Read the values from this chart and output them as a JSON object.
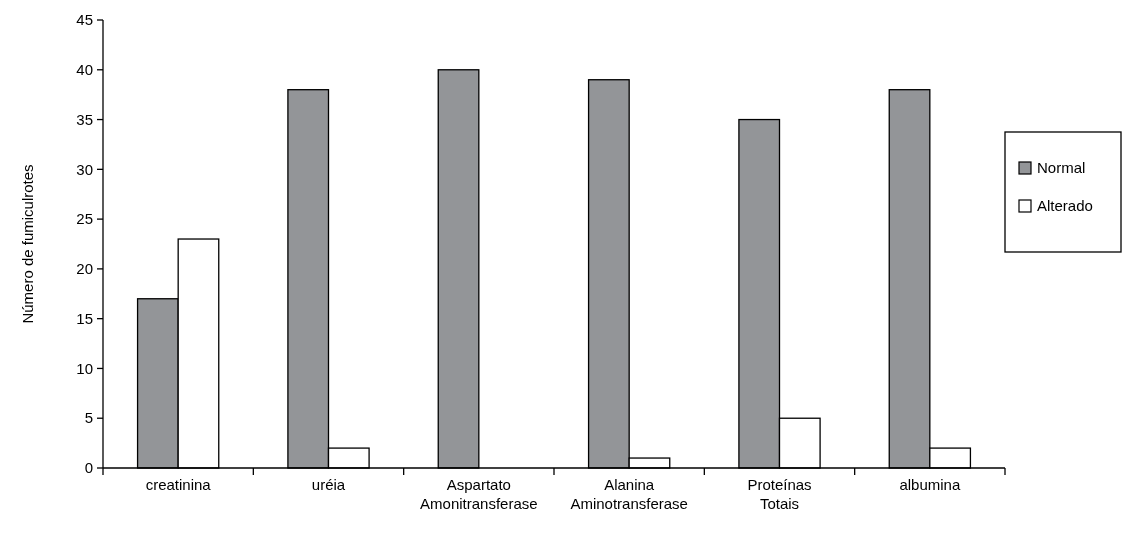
{
  "chart_data": {
    "type": "bar",
    "ylabel": "Número de fumiculrotes",
    "categories": [
      "creatinina",
      "uréia",
      "Aspartato Amonitransferase",
      "Alanina Aminotransferase",
      "Proteínas Totais",
      "albumina"
    ],
    "series": [
      {
        "name": "Normal",
        "color": "#939598",
        "values": [
          17,
          38,
          40,
          39,
          35,
          38
        ]
      },
      {
        "name": "Alterado",
        "color": "#ffffff",
        "values": [
          23,
          2,
          0,
          1,
          5,
          2
        ]
      }
    ],
    "ylim": [
      0,
      45
    ],
    "yticks": [
      0,
      5,
      10,
      15,
      20,
      25,
      30,
      35,
      40,
      45
    ],
    "grid": false,
    "legend": "right"
  }
}
